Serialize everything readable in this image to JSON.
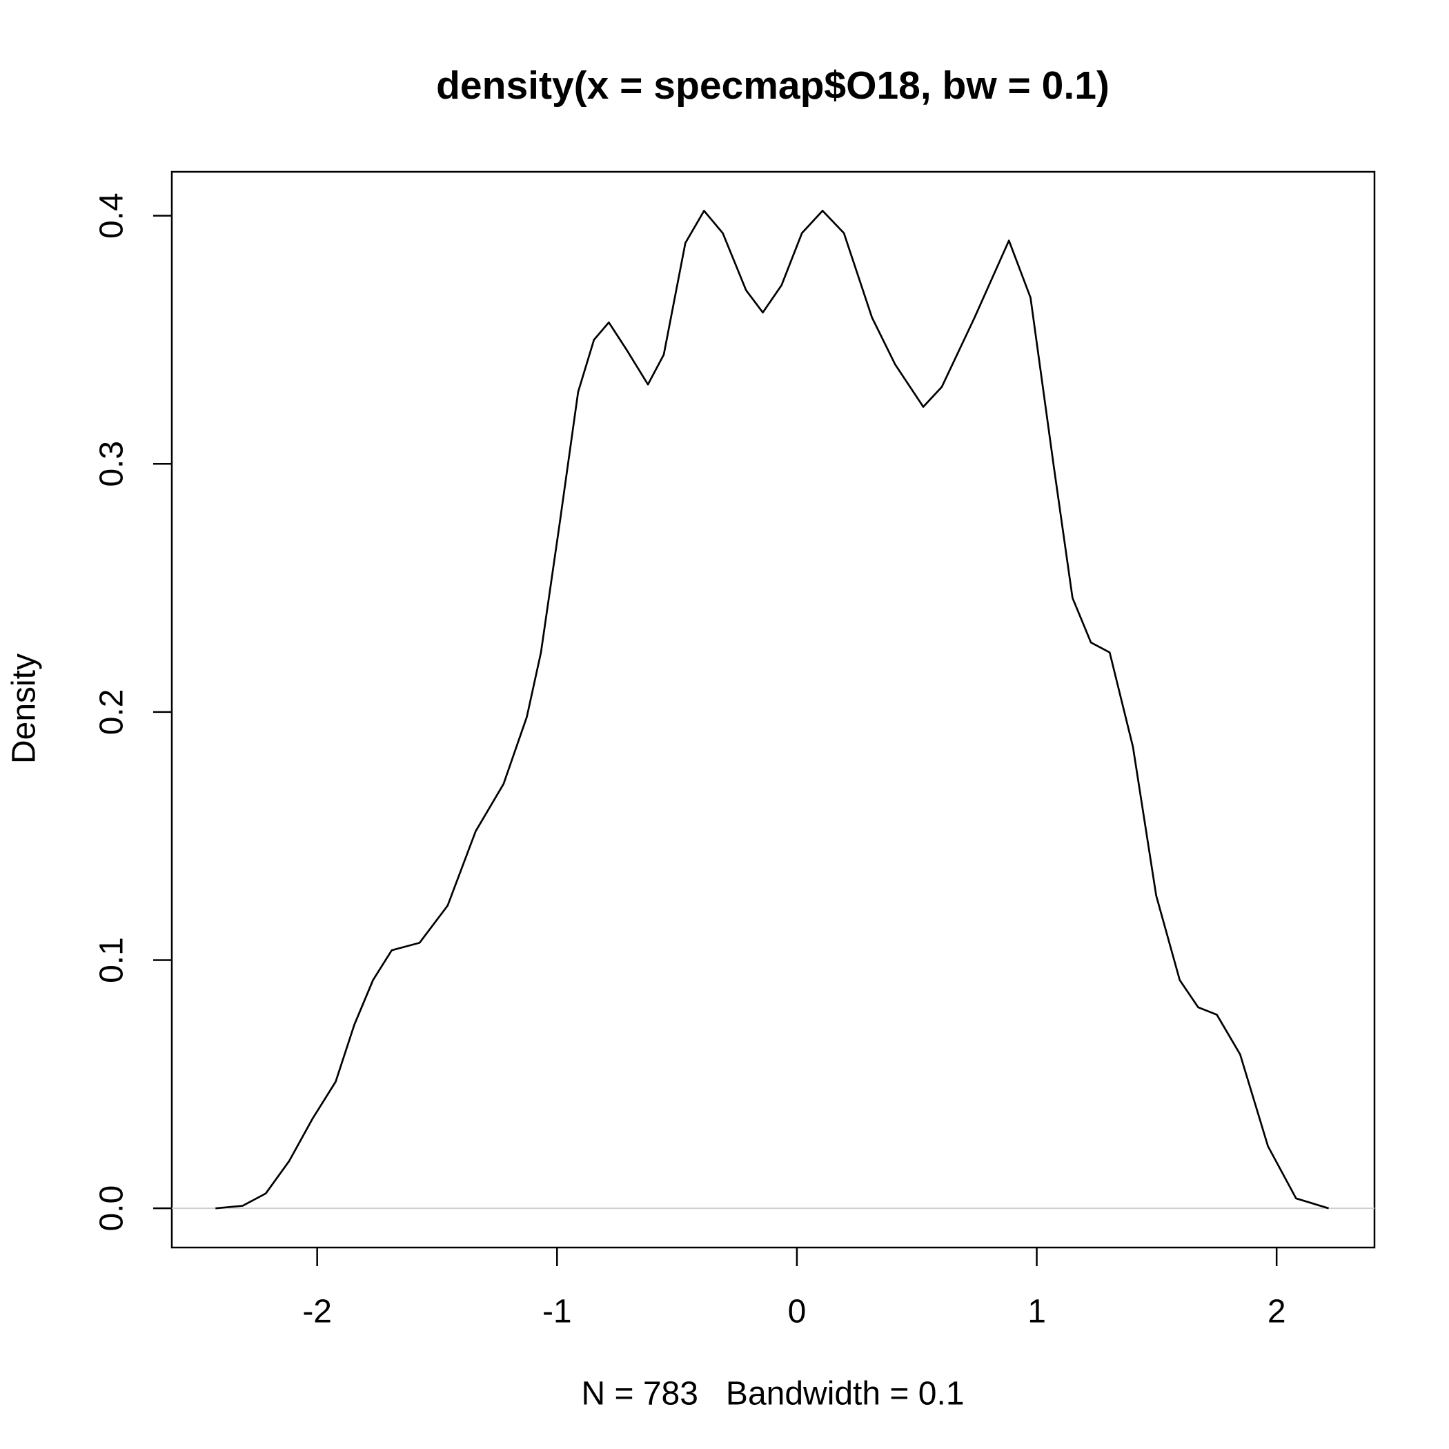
{
  "chart_data": {
    "type": "line",
    "title": "density(x = specmap$O18, bw = 0.1)",
    "x_label": "N = 783   Bandwidth = 0.1",
    "y_label": "Density",
    "x": [
      -2.424,
      -2.311,
      -2.214,
      -2.117,
      -2.02,
      -1.923,
      -1.845,
      -1.767,
      -1.689,
      -1.573,
      -1.456,
      -1.339,
      -1.223,
      -1.126,
      -1.067,
      -0.989,
      -0.912,
      -0.846,
      -0.784,
      -0.71,
      -0.621,
      -0.555,
      -0.465,
      -0.387,
      -0.309,
      -0.212,
      -0.142,
      -0.064,
      0.021,
      0.107,
      0.196,
      0.313,
      0.41,
      0.527,
      0.604,
      0.741,
      0.884,
      0.974,
      1.071,
      1.149,
      1.226,
      1.304,
      1.401,
      1.498,
      1.596,
      1.673,
      1.751,
      1.848,
      1.964,
      2.081,
      2.217
    ],
    "series": [
      {
        "color": "#000000",
        "values": [
          0,
          0.001,
          0.006,
          0.019,
          0.036,
          0.051,
          0.074,
          0.092,
          0.104,
          0.107,
          0.122,
          0.152,
          0.171,
          0.198,
          0.224,
          0.276,
          0.329,
          0.35,
          0.357,
          0.346,
          0.332,
          0.344,
          0.389,
          0.402,
          0.393,
          0.37,
          0.361,
          0.372,
          0.393,
          0.402,
          0.393,
          0.359,
          0.34,
          0.323,
          0.331,
          0.359,
          0.39,
          0.367,
          0.299,
          0.246,
          0.228,
          0.224,
          0.186,
          0.126,
          0.092,
          0.081,
          0.078,
          0.062,
          0.025,
          0.004,
          0
        ]
      }
    ],
    "xlim": [
      -2.606,
      2.408
    ],
    "ylim": [
      -0.0158,
      0.4177
    ],
    "xticks": [
      -2,
      -1,
      0,
      1,
      2
    ],
    "yticks": [
      {
        "value": 0,
        "label": "0.0"
      },
      0.1,
      0.2,
      0.3,
      0.4
    ],
    "zero_line": true
  }
}
